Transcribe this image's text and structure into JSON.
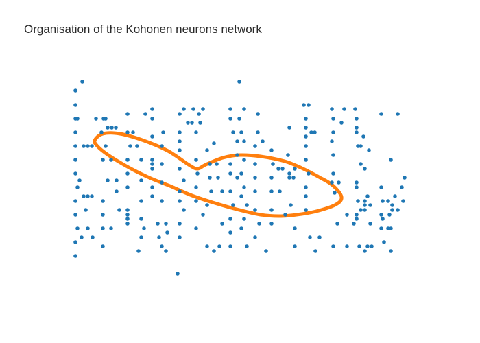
{
  "chart_data": {
    "type": "scatter",
    "title": "Organisation of the Kohonen neurons network",
    "xlabel": "",
    "ylabel": "",
    "axes_visible": false,
    "grid": false,
    "legend": "none",
    "colors": {
      "points": "#1f77b4",
      "ring": "#ff7f0e"
    },
    "series": [
      {
        "mode": "markers",
        "points": [
          [
            110,
            132
          ],
          [
            120,
            119
          ],
          [
            110,
            153
          ],
          [
            110,
            173
          ],
          [
            113,
            173
          ],
          [
            110,
            193
          ],
          [
            110,
            213
          ],
          [
            122,
            213
          ],
          [
            128,
            213
          ],
          [
            134,
            213
          ],
          [
            110,
            233
          ],
          [
            110,
            253
          ],
          [
            116,
            263
          ],
          [
            113,
            273
          ],
          [
            122,
            286
          ],
          [
            128,
            286
          ],
          [
            134,
            286
          ],
          [
            110,
            293
          ],
          [
            110,
            313
          ],
          [
            113,
            333
          ],
          [
            110,
            353
          ],
          [
            110,
            373
          ],
          [
            119,
            346
          ],
          [
            135,
            346
          ],
          [
            125,
            306
          ],
          [
            128,
            333
          ],
          [
            140,
            173
          ],
          [
            148,
            193
          ],
          [
            151,
            173
          ],
          [
            157,
            186
          ],
          [
            163,
            186
          ],
          [
            169,
            186
          ],
          [
            154,
            173
          ],
          [
            154,
            213
          ],
          [
            150,
            233
          ],
          [
            162,
            233
          ],
          [
            157,
            263
          ],
          [
            170,
            263
          ],
          [
            150,
            293
          ],
          [
            150,
            313
          ],
          [
            150,
            333
          ],
          [
            150,
            359
          ],
          [
            162,
            333
          ],
          [
            170,
            279
          ],
          [
            174,
            306
          ],
          [
            186,
            166
          ],
          [
            186,
            193
          ],
          [
            190,
            213
          ],
          [
            186,
            233
          ],
          [
            186,
            253
          ],
          [
            186,
            273
          ],
          [
            186,
            306
          ],
          [
            186,
            313
          ],
          [
            186,
            319
          ],
          [
            186,
            326
          ],
          [
            194,
            193
          ],
          [
            200,
            213
          ],
          [
            206,
            233
          ],
          [
            206,
            263
          ],
          [
            206,
            293
          ],
          [
            206,
            319
          ],
          [
            206,
            346
          ],
          [
            202,
            366
          ],
          [
            210,
            333
          ],
          [
            212,
            166
          ],
          [
            222,
            159
          ],
          [
            222,
            173
          ],
          [
            222,
            199
          ],
          [
            222,
            233
          ],
          [
            222,
            239
          ],
          [
            222,
            246
          ],
          [
            222,
            273
          ],
          [
            222,
            286
          ],
          [
            230,
            326
          ],
          [
            232,
            346
          ],
          [
            238,
            193
          ],
          [
            236,
            213
          ],
          [
            236,
            239
          ],
          [
            236,
            266
          ],
          [
            236,
            293
          ],
          [
            242,
            326
          ],
          [
            236,
            359
          ],
          [
            242,
            366
          ],
          [
            244,
            339
          ],
          [
            262,
            166
          ],
          [
            268,
            159
          ],
          [
            274,
            179
          ],
          [
            262,
            193
          ],
          [
            262,
            206
          ],
          [
            262,
            219
          ],
          [
            262,
            246
          ],
          [
            268,
            263
          ],
          [
            262,
            279
          ],
          [
            262,
            293
          ],
          [
            268,
            306
          ],
          [
            262,
            326
          ],
          [
            262,
            346
          ],
          [
            282,
            159
          ],
          [
            280,
            179
          ],
          [
            290,
            166
          ],
          [
            292,
            179
          ],
          [
            296,
            159
          ],
          [
            286,
            193
          ],
          [
            286,
            233
          ],
          [
            288,
            253
          ],
          [
            286,
            273
          ],
          [
            286,
            293
          ],
          [
            286,
            333
          ],
          [
            296,
            313
          ],
          [
            302,
            219
          ],
          [
            306,
            239
          ],
          [
            306,
            259
          ],
          [
            308,
            279
          ],
          [
            302,
            299
          ],
          [
            302,
            359
          ],
          [
            312,
            209
          ],
          [
            316,
            239
          ],
          [
            318,
            259
          ],
          [
            324,
            279
          ],
          [
            312,
            366
          ],
          [
            320,
            359
          ],
          [
            324,
            326
          ],
          [
            336,
            159
          ],
          [
            336,
            173
          ],
          [
            340,
            193
          ],
          [
            346,
            206
          ],
          [
            346,
            226
          ],
          [
            336,
            239
          ],
          [
            336,
            253
          ],
          [
            346,
            259
          ],
          [
            336,
            279
          ],
          [
            340,
            299
          ],
          [
            336,
            319
          ],
          [
            336,
            339
          ],
          [
            336,
            359
          ],
          [
            349,
            119
          ],
          [
            349,
            173
          ],
          [
            356,
            159
          ],
          [
            352,
            193
          ],
          [
            356,
            206
          ],
          [
            356,
            233
          ],
          [
            352,
            253
          ],
          [
            356,
            273
          ],
          [
            352,
            286
          ],
          [
            360,
            299
          ],
          [
            356,
            319
          ],
          [
            352,
            333
          ],
          [
            360,
            359
          ],
          [
            376,
            166
          ],
          [
            376,
            193
          ],
          [
            383,
            206
          ],
          [
            372,
            213
          ],
          [
            372,
            239
          ],
          [
            372,
            259
          ],
          [
            372,
            279
          ],
          [
            372,
            306
          ],
          [
            378,
            326
          ],
          [
            372,
            346
          ],
          [
            388,
            366
          ],
          [
            396,
            219
          ],
          [
            398,
            239
          ],
          [
            396,
            259
          ],
          [
            396,
            279
          ],
          [
            396,
            306
          ],
          [
            396,
            326
          ],
          [
            406,
            246
          ],
          [
            408,
            279
          ],
          [
            412,
            246
          ],
          [
            416,
            313
          ],
          [
            422,
            186
          ],
          [
            420,
            226
          ],
          [
            422,
            253
          ],
          [
            422,
            259
          ],
          [
            428,
            259
          ],
          [
            430,
            246
          ],
          [
            424,
            299
          ],
          [
            430,
            333
          ],
          [
            430,
            359
          ],
          [
            443,
            153
          ],
          [
            450,
            153
          ],
          [
            446,
            173
          ],
          [
            446,
            186
          ],
          [
            446,
            199
          ],
          [
            454,
            193
          ],
          [
            459,
            193
          ],
          [
            446,
            213
          ],
          [
            446,
            233
          ],
          [
            450,
            253
          ],
          [
            446,
            273
          ],
          [
            446,
            286
          ],
          [
            446,
            306
          ],
          [
            452,
            346
          ],
          [
            460,
            366
          ],
          [
            466,
            346
          ],
          [
            484,
            159
          ],
          [
            486,
            173
          ],
          [
            486,
            193
          ],
          [
            484,
            206
          ],
          [
            486,
            226
          ],
          [
            486,
            253
          ],
          [
            484,
            266
          ],
          [
            488,
            281
          ],
          [
            494,
            266
          ],
          [
            498,
            179
          ],
          [
            502,
            159
          ],
          [
            492,
            326
          ],
          [
            486,
            359
          ],
          [
            506,
            313
          ],
          [
            506,
            359
          ],
          [
            518,
            159
          ],
          [
            520,
            173
          ],
          [
            520,
            186
          ],
          [
            520,
            193
          ],
          [
            522,
            213
          ],
          [
            526,
            213
          ],
          [
            530,
            199
          ],
          [
            538,
            219
          ],
          [
            526,
            239
          ],
          [
            532,
            246
          ],
          [
            520,
            266
          ],
          [
            520,
            273
          ],
          [
            522,
            293
          ],
          [
            532,
            293
          ],
          [
            532,
            299
          ],
          [
            536,
            286
          ],
          [
            526,
            306
          ],
          [
            532,
            306
          ],
          [
            520,
            313
          ],
          [
            520,
            319
          ],
          [
            540,
            299
          ],
          [
            524,
            359
          ],
          [
            536,
            359
          ],
          [
            532,
            366
          ],
          [
            542,
            359
          ],
          [
            516,
            326
          ],
          [
            540,
            326
          ],
          [
            556,
            166
          ],
          [
            570,
            233
          ],
          [
            556,
            273
          ],
          [
            558,
            293
          ],
          [
            566,
            293
          ],
          [
            572,
            306
          ],
          [
            556,
            313
          ],
          [
            558,
            319
          ],
          [
            568,
            313
          ],
          [
            572,
            299
          ],
          [
            576,
            286
          ],
          [
            580,
            166
          ],
          [
            586,
            273
          ],
          [
            590,
            259
          ],
          [
            580,
            306
          ],
          [
            556,
            333
          ],
          [
            566,
            333
          ],
          [
            570,
            333
          ],
          [
            560,
            353
          ],
          [
            570,
            366
          ],
          [
            588,
            293
          ],
          [
            259,
            399
          ]
        ]
      },
      {
        "mode": "line",
        "closed": true,
        "points": [
          [
            138,
            205
          ],
          [
            150,
            195
          ],
          [
            175,
            195
          ],
          [
            210,
            205
          ],
          [
            245,
            220
          ],
          [
            275,
            240
          ],
          [
            288,
            246
          ],
          [
            300,
            240
          ],
          [
            325,
            230
          ],
          [
            350,
            226
          ],
          [
            380,
            228
          ],
          [
            415,
            235
          ],
          [
            440,
            245
          ],
          [
            465,
            258
          ],
          [
            485,
            270
          ],
          [
            498,
            287
          ],
          [
            490,
            298
          ],
          [
            465,
            307
          ],
          [
            440,
            312
          ],
          [
            410,
            315
          ],
          [
            380,
            313
          ],
          [
            345,
            305
          ],
          [
            310,
            295
          ],
          [
            280,
            285
          ],
          [
            250,
            272
          ],
          [
            220,
            260
          ],
          [
            195,
            248
          ],
          [
            172,
            235
          ],
          [
            155,
            224
          ],
          [
            143,
            214
          ]
        ]
      }
    ]
  }
}
